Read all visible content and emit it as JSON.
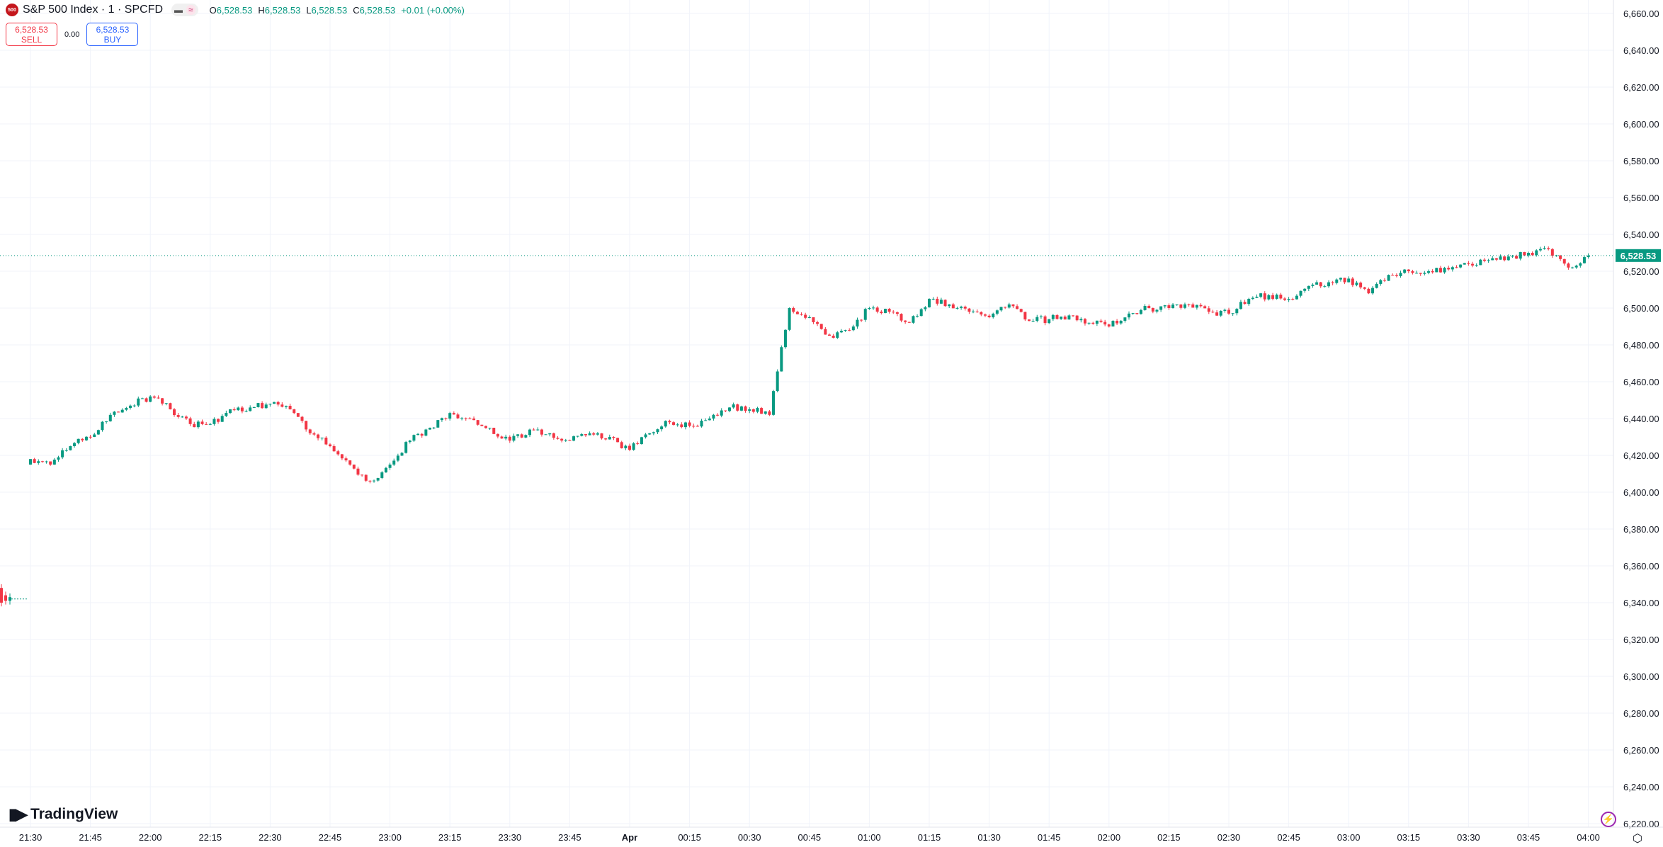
{
  "header": {
    "symbol_badge": "500",
    "title": "S&P 500 Index · 1 · SPCFD",
    "ohlc": {
      "o_label": "O",
      "o": "6,528.53",
      "h_label": "H",
      "h": "6,528.53",
      "l_label": "L",
      "l": "6,528.53",
      "c_label": "C",
      "c": "6,528.53",
      "change": "+0.01 (+0.00%)"
    }
  },
  "trade": {
    "sell_price": "6,528.53",
    "sell_label": "SELL",
    "spread": "0.00",
    "buy_price": "6,528.53",
    "buy_label": "BUY"
  },
  "branding": {
    "logo_text": "TradingView"
  },
  "colors": {
    "up": "#089981",
    "down": "#f23645",
    "grid": "#f0f3fa",
    "last_price_bg": "#089981"
  },
  "chart_data": {
    "type": "candlestick",
    "interval": "1 minute",
    "price_axis": {
      "min": 6220,
      "max": 6660,
      "step": 20,
      "labels": [
        "6,660.00",
        "6,640.00",
        "6,620.00",
        "6,600.00",
        "6,580.00",
        "6,560.00",
        "6,540.00",
        "6,520.00",
        "6,500.00",
        "6,480.00",
        "6,460.00",
        "6,440.00",
        "6,420.00",
        "6,400.00",
        "6,380.00",
        "6,360.00",
        "6,340.00",
        "6,320.00",
        "6,300.00",
        "6,280.00",
        "6,260.00",
        "6,240.00",
        "6,220.00"
      ]
    },
    "time_axis": {
      "labels": [
        "21:30",
        "21:45",
        "22:00",
        "22:15",
        "22:30",
        "22:45",
        "23:00",
        "23:15",
        "23:30",
        "23:45",
        "Apr",
        "00:15",
        "00:30",
        "00:45",
        "01:00",
        "01:15",
        "01:30",
        "01:45",
        "02:00",
        "02:15",
        "02:30",
        "02:45",
        "03:00",
        "03:15",
        "03:30",
        "03:45",
        "04:00"
      ]
    },
    "last_price": "6,528.53",
    "prior_session_close": 6342,
    "closes_5min_from_2130": [
      6418,
      6415,
      6425,
      6430,
      6442,
      6447,
      6452,
      6445,
      6437,
      6437,
      6445,
      6446,
      6448,
      6445,
      6432,
      6425,
      6415,
      6406,
      6415,
      6428,
      6435,
      6443,
      6440,
      6435,
      6428,
      6434,
      6432,
      6428,
      6432,
      6430,
      6423,
      6432,
      6438,
      6436,
      6440,
      6446,
      6445,
      6442,
      6500,
      6495,
      6485,
      6488,
      6500,
      6498,
      6492,
      6505,
      6502,
      6498,
      6495,
      6502,
      6493,
      6494,
      6496,
      6492,
      6490,
      6497,
      6500,
      6500,
      6502,
      6498,
      6497,
      6505,
      6507,
      6505,
      6512,
      6514,
      6516,
      6508,
      6518,
      6520,
      6520,
      6521,
      6524,
      6526,
      6528,
      6530,
      6532,
      6522,
      6528.53
    ]
  }
}
